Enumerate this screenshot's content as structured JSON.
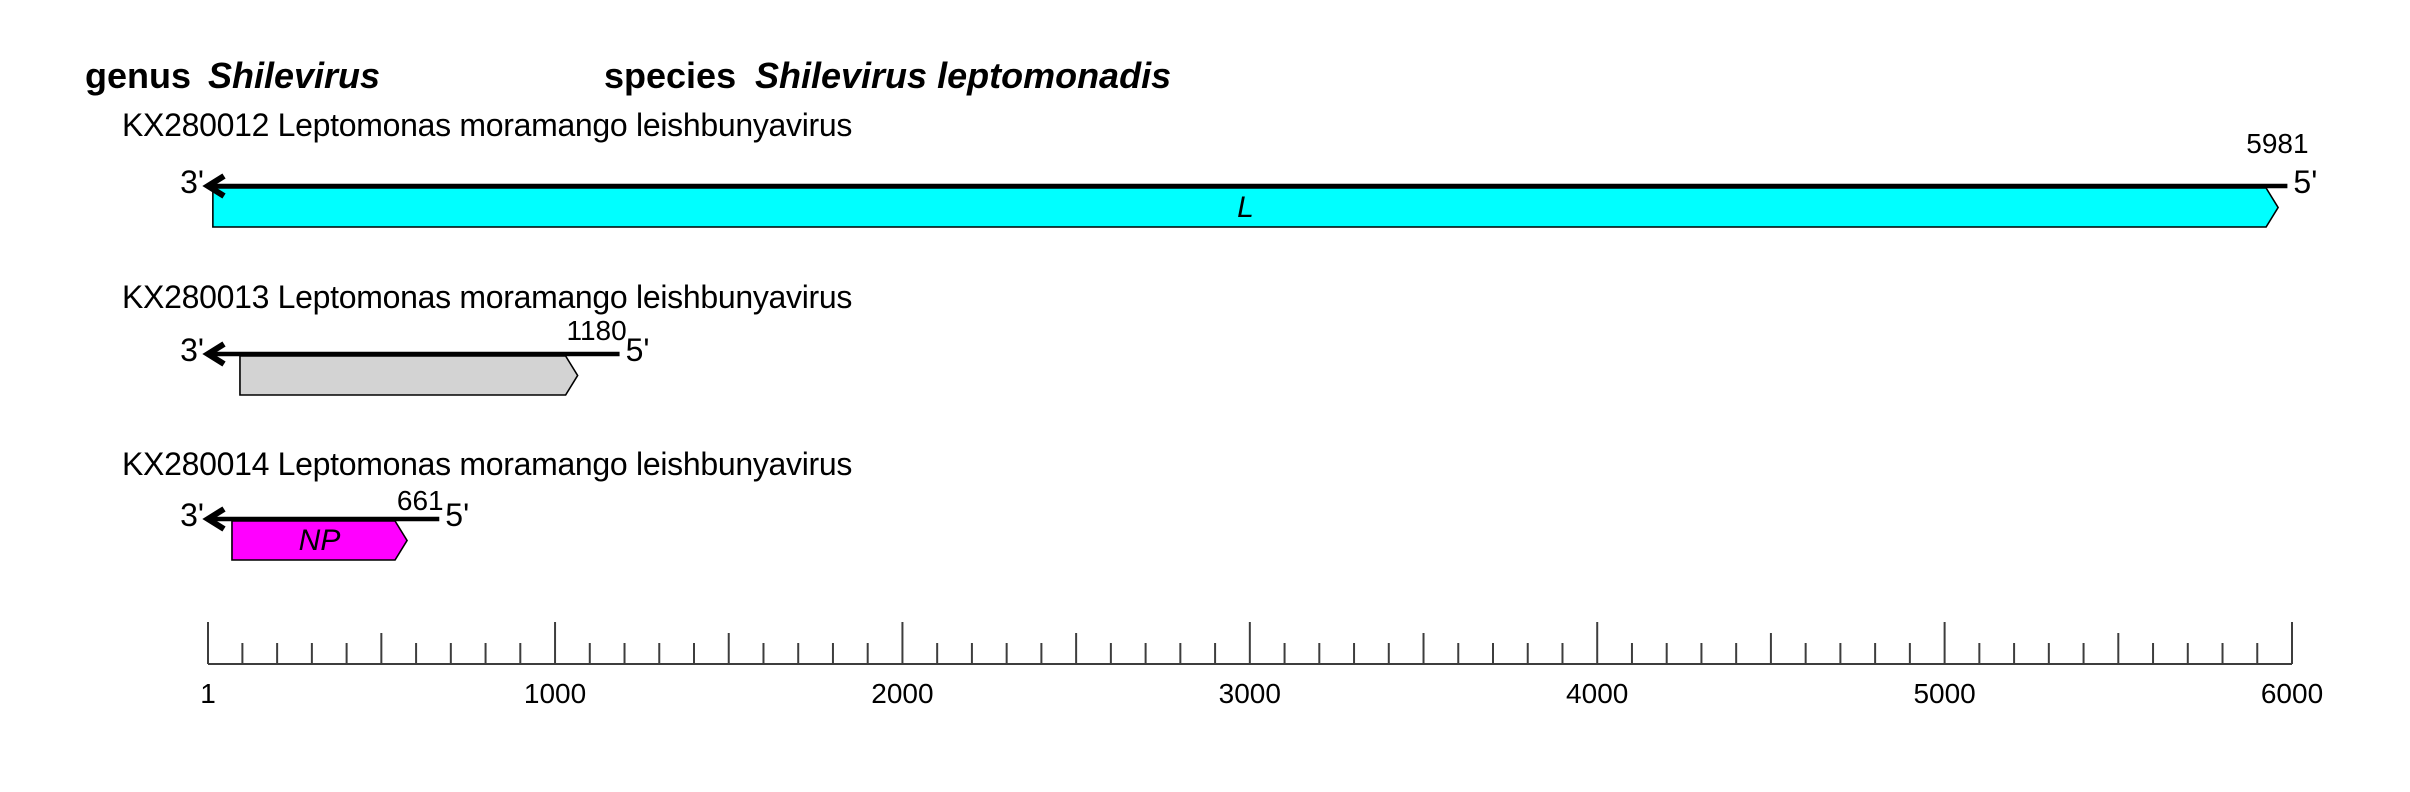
{
  "title": {
    "genus_label": "genus",
    "genus_name": "Shilevirus",
    "species_label": "species",
    "species_name": "Shilevirus leptomonadis"
  },
  "colors": {
    "orf_L_fill": "#00FFFF",
    "orf_unnamed_fill": "#D3D3D3",
    "orf_NP_fill": "#FF00FF",
    "outline": "#000000",
    "ruler": "#3D3D3D",
    "background": "#FFFFFF"
  },
  "chart_data": {
    "type": "genome-map",
    "ruler": {
      "min": 1,
      "max": 6000,
      "minor_step": 100,
      "medium_step": 500,
      "major_step": 1000,
      "tick_labels": [
        "1",
        "1000",
        "2000",
        "3000",
        "4000",
        "5000",
        "6000"
      ]
    },
    "segments": [
      {
        "accession_line": "KX280012 Leptomonas moramango leishbunyavirus",
        "length_nt": 5981,
        "length_label": "5981",
        "three_prime_label": "3'",
        "five_prime_label": "5'",
        "orfs": [
          {
            "name": "L",
            "approx_start_nt": 15,
            "approx_end_nt": 5960,
            "fill_color": "#00FFFF"
          }
        ]
      },
      {
        "accession_line": "KX280013 Leptomonas moramango leishbunyavirus",
        "length_nt": 1180,
        "length_label": "1180",
        "three_prime_label": "3'",
        "five_prime_label": "5'",
        "orfs": [
          {
            "name": "",
            "approx_start_nt": 93,
            "approx_end_nt": 1065,
            "fill_color": "#D3D3D3"
          }
        ]
      },
      {
        "accession_line": "KX280014 Leptomonas moramango leishbunyavirus",
        "length_nt": 661,
        "length_label": "661",
        "three_prime_label": "3'",
        "five_prime_label": "5'",
        "orfs": [
          {
            "name": "NP",
            "approx_start_nt": 70,
            "approx_end_nt": 574,
            "fill_color": "#FF00FF"
          }
        ]
      }
    ]
  }
}
